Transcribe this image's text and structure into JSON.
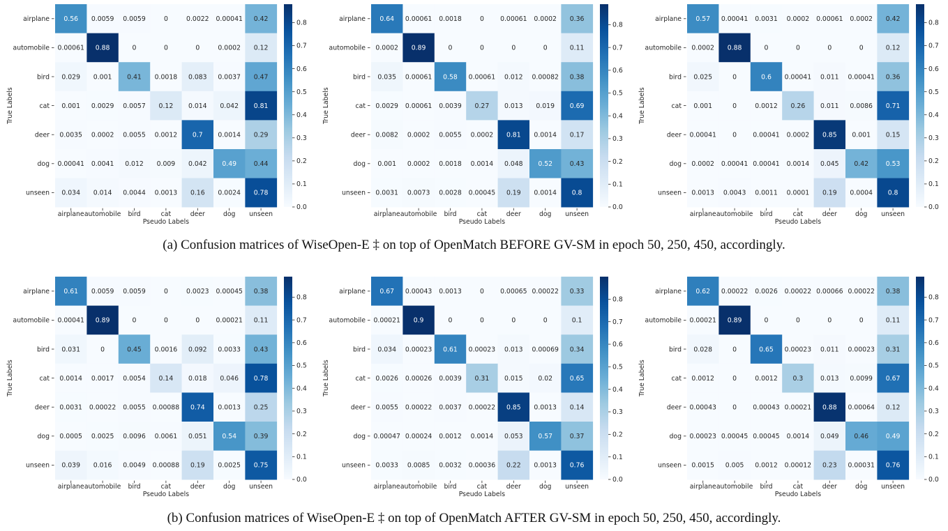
{
  "captions": {
    "a": "(a)  Confusion matrices of WiseOpen-E ‡ on top of OpenMatch BEFORE GV-SM in epoch 50, 250, 450, accordingly.",
    "b": "(b)  Confusion matrices of WiseOpen-E ‡ on top of OpenMatch AFTER GV-SM in epoch 50, 250, 450, accordingly."
  },
  "colormap": [
    "#f7fbff",
    "#deebf7",
    "#c6dbef",
    "#9ecae1",
    "#6baed6",
    "#4292c6",
    "#2171b5",
    "#08519c",
    "#08306b"
  ],
  "chart_data": [
    {
      "type": "heatmap",
      "panel": "a1",
      "xlabel": "Pseudo Labels",
      "ylabel": "True Labels",
      "x": [
        "airplane",
        "automobile",
        "bird",
        "cat",
        "deer",
        "dog",
        "unseen"
      ],
      "y": [
        "airplane",
        "automobile",
        "bird",
        "cat",
        "deer",
        "dog",
        "unseen"
      ],
      "values": [
        [
          "0.56",
          "0.0059",
          "0.0059",
          "0",
          "0.0022",
          "0.00041",
          "0.42"
        ],
        [
          "0.00061",
          "0.88",
          "0",
          "0",
          "0",
          "0.0002",
          "0.12"
        ],
        [
          "0.029",
          "0.001",
          "0.41",
          "0.0018",
          "0.083",
          "0.0037",
          "0.47"
        ],
        [
          "0.001",
          "0.0029",
          "0.0057",
          "0.12",
          "0.014",
          "0.042",
          "0.81"
        ],
        [
          "0.0035",
          "0.0002",
          "0.0055",
          "0.0012",
          "0.7",
          "0.0014",
          "0.29"
        ],
        [
          "0.00041",
          "0.0041",
          "0.012",
          "0.009",
          "0.042",
          "0.49",
          "0.44"
        ],
        [
          "0.034",
          "0.014",
          "0.0044",
          "0.0013",
          "0.16",
          "0.0024",
          "0.78"
        ]
      ],
      "vmin": 0,
      "vmax": 0.88,
      "colorbar_ticks": [
        "0.0",
        "0.1",
        "0.2",
        "0.3",
        "0.4",
        "0.5",
        "0.6",
        "0.7",
        "0.8"
      ]
    },
    {
      "type": "heatmap",
      "panel": "a2",
      "xlabel": "Pseudo Labels",
      "ylabel": "True Labels",
      "x": [
        "airplane",
        "automobile",
        "bird",
        "cat",
        "deer",
        "dog",
        "unseen"
      ],
      "y": [
        "airplane",
        "automobile",
        "bird",
        "cat",
        "deer",
        "dog",
        "unseen"
      ],
      "values": [
        [
          "0.64",
          "0.00061",
          "0.0018",
          "0",
          "0.00061",
          "0.0002",
          "0.36"
        ],
        [
          "0.0002",
          "0.89",
          "0",
          "0",
          "0",
          "0",
          "0.11"
        ],
        [
          "0.035",
          "0.00061",
          "0.58",
          "0.00061",
          "0.012",
          "0.00082",
          "0.38"
        ],
        [
          "0.0029",
          "0.00061",
          "0.0039",
          "0.27",
          "0.013",
          "0.019",
          "0.69"
        ],
        [
          "0.0082",
          "0.0002",
          "0.0055",
          "0.0002",
          "0.81",
          "0.0014",
          "0.17"
        ],
        [
          "0.001",
          "0.0002",
          "0.0018",
          "0.0014",
          "0.048",
          "0.52",
          "0.43"
        ],
        [
          "0.0031",
          "0.0073",
          "0.0028",
          "0.00045",
          "0.19",
          "0.0014",
          "0.8"
        ]
      ],
      "vmin": 0,
      "vmax": 0.89,
      "colorbar_ticks": [
        "0.0",
        "0.1",
        "0.2",
        "0.3",
        "0.4",
        "0.5",
        "0.6",
        "0.7",
        "0.8"
      ]
    },
    {
      "type": "heatmap",
      "panel": "a3",
      "xlabel": "Pseudo Labels",
      "ylabel": "True Labels",
      "x": [
        "airplane",
        "automobile",
        "bird",
        "cat",
        "deer",
        "dog",
        "unseen"
      ],
      "y": [
        "airplane",
        "automobile",
        "bird",
        "cat",
        "deer",
        "dog",
        "unseen"
      ],
      "values": [
        [
          "0.57",
          "0.00041",
          "0.0031",
          "0.0002",
          "0.00061",
          "0.0002",
          "0.42"
        ],
        [
          "0.0002",
          "0.88",
          "0",
          "0",
          "0",
          "0",
          "0.12"
        ],
        [
          "0.025",
          "0",
          "0.6",
          "0.00041",
          "0.011",
          "0.00041",
          "0.36"
        ],
        [
          "0.001",
          "0",
          "0.0012",
          "0.26",
          "0.011",
          "0.0086",
          "0.71"
        ],
        [
          "0.00041",
          "0",
          "0.00041",
          "0.0002",
          "0.85",
          "0.001",
          "0.15"
        ],
        [
          "0.0002",
          "0.00041",
          "0.00041",
          "0.0014",
          "0.045",
          "0.42",
          "0.53"
        ],
        [
          "0.0013",
          "0.0043",
          "0.0011",
          "0.0001",
          "0.19",
          "0.0004",
          "0.8"
        ]
      ],
      "vmin": 0,
      "vmax": 0.88,
      "colorbar_ticks": [
        "0.0",
        "0.1",
        "0.2",
        "0.3",
        "0.4",
        "0.5",
        "0.6",
        "0.7",
        "0.8"
      ]
    },
    {
      "type": "heatmap",
      "panel": "b1",
      "xlabel": "Pseudo Labels",
      "ylabel": "True Labels",
      "x": [
        "airplane",
        "automobile",
        "bird",
        "cat",
        "deer",
        "dog",
        "unseen"
      ],
      "y": [
        "airplane",
        "automobile",
        "bird",
        "cat",
        "deer",
        "dog",
        "unseen"
      ],
      "values": [
        [
          "0.61",
          "0.0059",
          "0.0059",
          "0",
          "0.0023",
          "0.00045",
          "0.38"
        ],
        [
          "0.00041",
          "0.89",
          "0",
          "0",
          "0",
          "0.00021",
          "0.11"
        ],
        [
          "0.031",
          "0",
          "0.45",
          "0.0016",
          "0.092",
          "0.0033",
          "0.43"
        ],
        [
          "0.0014",
          "0.0017",
          "0.0054",
          "0.14",
          "0.018",
          "0.046",
          "0.78"
        ],
        [
          "0.0031",
          "0.00022",
          "0.0055",
          "0.00088",
          "0.74",
          "0.0013",
          "0.25"
        ],
        [
          "0.0005",
          "0.0025",
          "0.0096",
          "0.0061",
          "0.051",
          "0.54",
          "0.39"
        ],
        [
          "0.039",
          "0.016",
          "0.0049",
          "0.00088",
          "0.19",
          "0.0025",
          "0.75"
        ]
      ],
      "vmin": 0,
      "vmax": 0.89,
      "colorbar_ticks": [
        "0.0",
        "0.1",
        "0.2",
        "0.3",
        "0.4",
        "0.5",
        "0.6",
        "0.7",
        "0.8"
      ]
    },
    {
      "type": "heatmap",
      "panel": "b2",
      "xlabel": "Pseudo Labels",
      "ylabel": "True Labels",
      "x": [
        "airplane",
        "automobile",
        "bird",
        "cat",
        "deer",
        "dog",
        "unseen"
      ],
      "y": [
        "airplane",
        "automobile",
        "bird",
        "cat",
        "deer",
        "dog",
        "unseen"
      ],
      "values": [
        [
          "0.67",
          "0.00043",
          "0.0013",
          "0",
          "0.00065",
          "0.00022",
          "0.33"
        ],
        [
          "0.00021",
          "0.9",
          "0",
          "0",
          "0",
          "0",
          "0.1"
        ],
        [
          "0.034",
          "0.00023",
          "0.61",
          "0.00023",
          "0.013",
          "0.00069",
          "0.34"
        ],
        [
          "0.0026",
          "0.00026",
          "0.0039",
          "0.31",
          "0.015",
          "0.02",
          "0.65"
        ],
        [
          "0.0055",
          "0.00022",
          "0.0037",
          "0.00022",
          "0.85",
          "0.0013",
          "0.14"
        ],
        [
          "0.00047",
          "0.00024",
          "0.0012",
          "0.0014",
          "0.053",
          "0.57",
          "0.37"
        ],
        [
          "0.0033",
          "0.0085",
          "0.0032",
          "0.00036",
          "0.22",
          "0.0013",
          "0.76"
        ]
      ],
      "vmin": 0,
      "vmax": 0.9,
      "colorbar_ticks": [
        "0.0",
        "0.1",
        "0.2",
        "0.3",
        "0.4",
        "0.5",
        "0.6",
        "0.7",
        "0.8"
      ]
    },
    {
      "type": "heatmap",
      "panel": "b3",
      "xlabel": "Pseudo Labels",
      "ylabel": "True Labels",
      "x": [
        "airplane",
        "automobile",
        "bird",
        "cat",
        "deer",
        "dog",
        "unseen"
      ],
      "y": [
        "airplane",
        "automobile",
        "bird",
        "cat",
        "deer",
        "dog",
        "unseen"
      ],
      "values": [
        [
          "0.62",
          "0.00022",
          "0.0026",
          "0.00022",
          "0.00066",
          "0.00022",
          "0.38"
        ],
        [
          "0.00021",
          "0.89",
          "0",
          "0",
          "0",
          "0",
          "0.11"
        ],
        [
          "0.028",
          "0",
          "0.65",
          "0.00023",
          "0.011",
          "0.00023",
          "0.31"
        ],
        [
          "0.0012",
          "0",
          "0.0012",
          "0.3",
          "0.013",
          "0.0099",
          "0.67"
        ],
        [
          "0.00043",
          "0",
          "0.00043",
          "0.00021",
          "0.88",
          "0.00064",
          "0.12"
        ],
        [
          "0.00023",
          "0.00045",
          "0.00045",
          "0.0014",
          "0.049",
          "0.46",
          "0.49"
        ],
        [
          "0.0015",
          "0.005",
          "0.0012",
          "0.00012",
          "0.23",
          "0.00031",
          "0.76"
        ]
      ],
      "vmin": 0,
      "vmax": 0.89,
      "colorbar_ticks": [
        "0.0",
        "0.1",
        "0.2",
        "0.3",
        "0.4",
        "0.5",
        "0.6",
        "0.7",
        "0.8"
      ]
    }
  ]
}
